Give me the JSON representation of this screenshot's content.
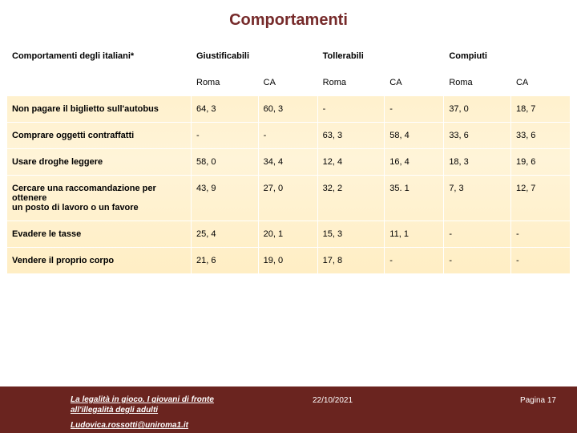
{
  "title": "Comportamenti",
  "table": {
    "header_label": "Comportamenti degli italiani*",
    "groups": [
      "Giustificabili",
      "Tollerabili",
      "Compiuti"
    ],
    "sub": [
      "Roma",
      "CA",
      "Roma",
      "CA",
      "Roma",
      "CA"
    ],
    "rows": [
      {
        "label": "Non pagare il biglietto sull'autobus",
        "v": [
          "64, 3",
          "60, 3",
          "-",
          "-",
          "37, 0",
          "18, 7"
        ]
      },
      {
        "label": "Comprare oggetti contraffatti",
        "v": [
          "-",
          "-",
          "63, 3",
          "58, 4",
          "33, 6",
          "33, 6"
        ]
      },
      {
        "label": "Usare droghe leggere",
        "v": [
          "58, 0",
          "34, 4",
          "12, 4",
          "16, 4",
          "18, 3",
          "19, 6"
        ]
      },
      {
        "label": "Cercare una raccomandazione per ottenere\n un posto di lavoro o un favore",
        "v": [
          "43, 9",
          "27, 0",
          "32, 2",
          "35. 1",
          " 7, 3",
          "12, 7"
        ]
      },
      {
        "label": "Evadere le tasse",
        "v": [
          "25, 4",
          "20, 1",
          "15, 3",
          "11, 1",
          "-",
          "-"
        ]
      },
      {
        "label": "Vendere il proprio corpo",
        "v": [
          "21, 6",
          "19, 0",
          "17, 8",
          "-",
          "-",
          "-"
        ]
      }
    ]
  },
  "footer": {
    "subtitle": "La legalità in gioco. I giovani di fronte all'illegalità degli adulti",
    "email": "Ludovica.rossotti@uniroma1.it",
    "date": "22/10/2021",
    "page": "Pagina 17"
  },
  "colors": {
    "title_color": "#762a2a",
    "footer_bg": "#6a241f",
    "table_bg_light": "#fff4d8",
    "table_bg": "#ffeec4"
  }
}
